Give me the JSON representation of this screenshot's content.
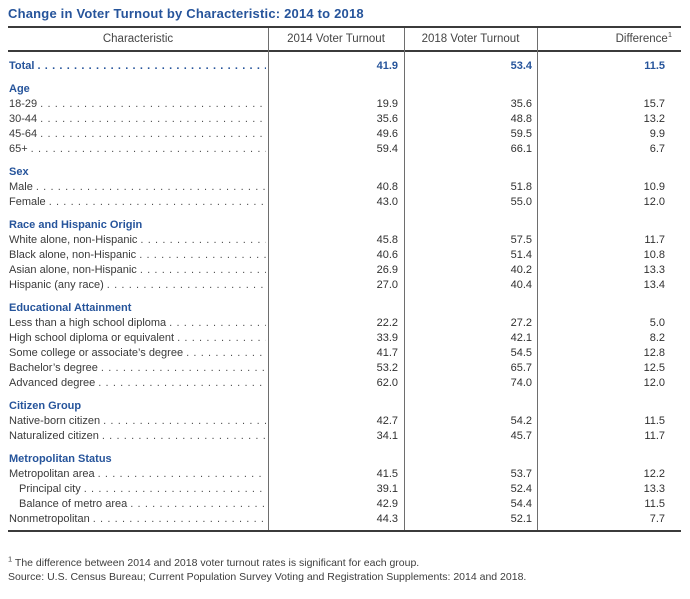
{
  "title": "Change in Voter Turnout by Characteristic: 2014 to 2018",
  "colors": {
    "accent_blue": "#26549B",
    "text": "#3A3A3A",
    "rule": "#3B3B3B"
  },
  "chart_data": {
    "type": "table",
    "title": "Change in Voter Turnout by Characteristic: 2014 to 2018",
    "columns": [
      "Characteristic",
      "2014 Voter Turnout",
      "2018 Voter Turnout",
      "Difference"
    ],
    "footnote_marker": "1",
    "sections": [
      {
        "name": null,
        "rows": [
          {
            "characteristic": "Total",
            "turnout_2014": 41.9,
            "turnout_2018": 53.4,
            "difference": 11.5,
            "emphasis": true
          }
        ]
      },
      {
        "name": "Age",
        "rows": [
          {
            "characteristic": "18-29",
            "turnout_2014": 19.9,
            "turnout_2018": 35.6,
            "difference": 15.7
          },
          {
            "characteristic": "30-44",
            "turnout_2014": 35.6,
            "turnout_2018": 48.8,
            "difference": 13.2
          },
          {
            "characteristic": "45-64",
            "turnout_2014": 49.6,
            "turnout_2018": 59.5,
            "difference": 9.9
          },
          {
            "characteristic": "65+",
            "turnout_2014": 59.4,
            "turnout_2018": 66.1,
            "difference": 6.7
          }
        ]
      },
      {
        "name": "Sex",
        "rows": [
          {
            "characteristic": "Male",
            "turnout_2014": 40.8,
            "turnout_2018": 51.8,
            "difference": 10.9
          },
          {
            "characteristic": "Female",
            "turnout_2014": 43.0,
            "turnout_2018": 55.0,
            "difference": 12.0
          }
        ]
      },
      {
        "name": "Race and Hispanic Origin",
        "rows": [
          {
            "characteristic": "White alone, non-Hispanic",
            "turnout_2014": 45.8,
            "turnout_2018": 57.5,
            "difference": 11.7
          },
          {
            "characteristic": "Black alone, non-Hispanic",
            "turnout_2014": 40.6,
            "turnout_2018": 51.4,
            "difference": 10.8
          },
          {
            "characteristic": "Asian alone, non-Hispanic",
            "turnout_2014": 26.9,
            "turnout_2018": 40.2,
            "difference": 13.3
          },
          {
            "characteristic": "Hispanic (any race)",
            "turnout_2014": 27.0,
            "turnout_2018": 40.4,
            "difference": 13.4
          }
        ]
      },
      {
        "name": "Educational Attainment",
        "rows": [
          {
            "characteristic": "Less than a high school diploma",
            "turnout_2014": 22.2,
            "turnout_2018": 27.2,
            "difference": 5.0
          },
          {
            "characteristic": "High school diploma or equivalent",
            "turnout_2014": 33.9,
            "turnout_2018": 42.1,
            "difference": 8.2
          },
          {
            "characteristic": "Some college or associate’s degree",
            "turnout_2014": 41.7,
            "turnout_2018": 54.5,
            "difference": 12.8
          },
          {
            "characteristic": "Bachelor’s degree",
            "turnout_2014": 53.2,
            "turnout_2018": 65.7,
            "difference": 12.5
          },
          {
            "characteristic": "Advanced degree",
            "turnout_2014": 62.0,
            "turnout_2018": 74.0,
            "difference": 12.0
          }
        ]
      },
      {
        "name": "Citizen Group",
        "rows": [
          {
            "characteristic": "Native-born citizen",
            "turnout_2014": 42.7,
            "turnout_2018": 54.2,
            "difference": 11.5
          },
          {
            "characteristic": "Naturalized citizen",
            "turnout_2014": 34.1,
            "turnout_2018": 45.7,
            "difference": 11.7
          }
        ]
      },
      {
        "name": "Metropolitan Status",
        "rows": [
          {
            "characteristic": "Metropolitan area",
            "turnout_2014": 41.5,
            "turnout_2018": 53.7,
            "difference": 12.2
          },
          {
            "characteristic": "Principal city",
            "turnout_2014": 39.1,
            "turnout_2018": 52.4,
            "difference": 13.3,
            "indent": true
          },
          {
            "characteristic": "Balance of metro area",
            "turnout_2014": 42.9,
            "turnout_2018": 54.4,
            "difference": 11.5,
            "indent": true
          },
          {
            "characteristic": "Nonmetropolitan",
            "turnout_2014": 44.3,
            "turnout_2018": 52.1,
            "difference": 7.7
          }
        ]
      }
    ],
    "footnote": "The difference between 2014 and 2018 voter turnout rates is significant for each group.",
    "source": "Source: U.S. Census Bureau; Current Population Survey Voting and Registration Supplements: 2014 and 2018."
  }
}
